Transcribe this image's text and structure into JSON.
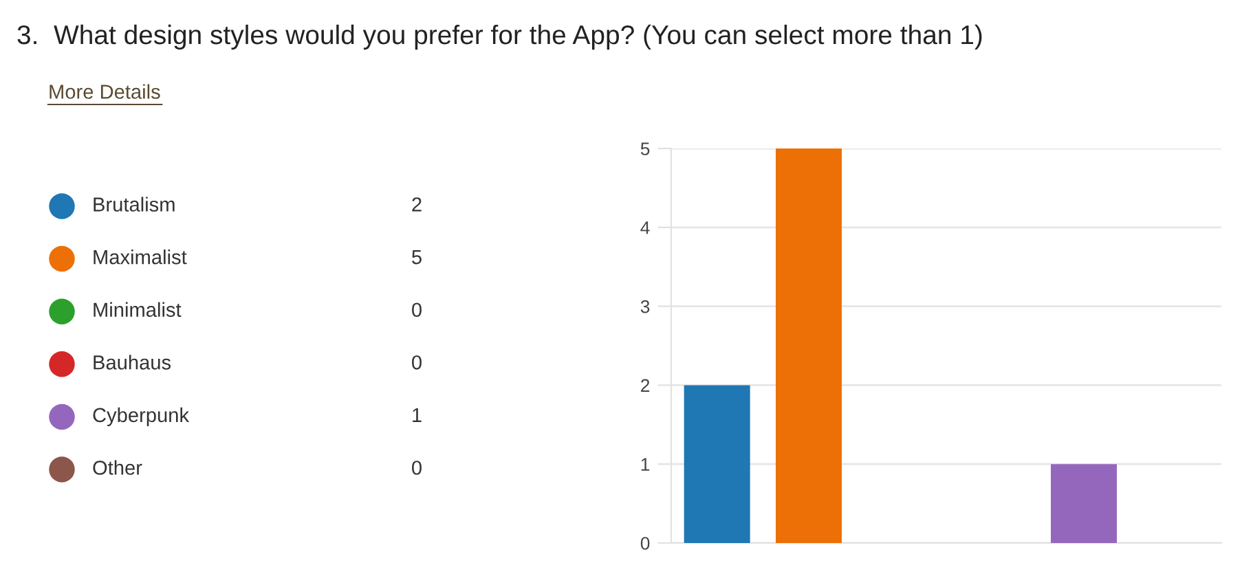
{
  "chart_data": [
    {
      "type": "other",
      "title": "3.  What design styles would you prefer for the App? (You can select more than 1)",
      "annotations": [
        "More Details"
      ],
      "categories": [
        "Brutalism",
        "Maximalist",
        "Minimalist",
        "Bauhaus",
        "Cyberpunk",
        "Other"
      ],
      "values": [
        2,
        5,
        0,
        0,
        1,
        0
      ],
      "colors": [
        "#1f77b4",
        "#ec7005",
        "#2ca02c",
        "#d62728",
        "#9467bd",
        "#8c564b"
      ],
      "data_labels": true
    },
    {
      "type": "bar",
      "categories": [
        null,
        null,
        null,
        null,
        null,
        null
      ],
      "values": [
        2,
        5,
        0,
        0,
        1,
        0
      ],
      "colors": [
        "#1f77b4",
        "#ec7005",
        "#2ca02c",
        "#d62728",
        "#9467bd",
        "#8c564b"
      ],
      "ylim": [
        0,
        5
      ],
      "yticks": [
        0,
        1,
        2,
        3,
        4,
        5
      ],
      "grid": "y",
      "tick_labels": "y"
    }
  ]
}
